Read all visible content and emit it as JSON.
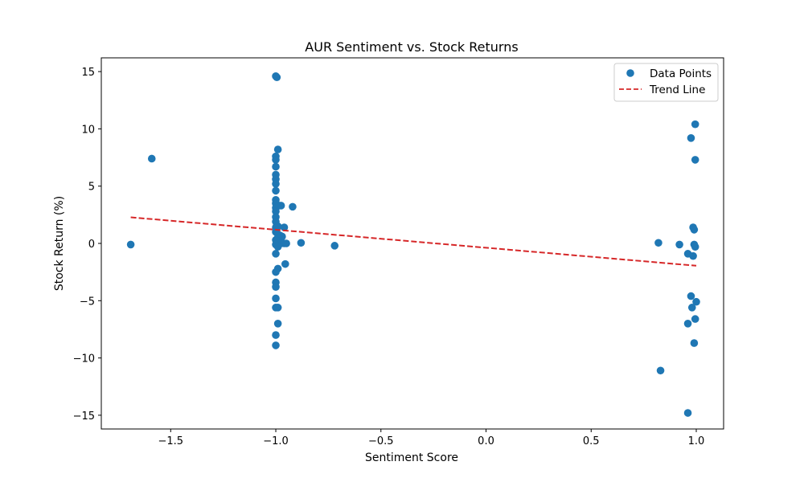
{
  "chart_data": {
    "type": "scatter",
    "title": "AUR Sentiment vs. Stock Returns",
    "xlabel": "Sentiment Score",
    "ylabel": "Stock Return (%)",
    "xlim": [
      -1.83,
      1.13
    ],
    "ylim": [
      -16.2,
      16.2
    ],
    "xticks": [
      -1.5,
      -1.0,
      -0.5,
      0.0,
      0.5,
      1.0
    ],
    "xtick_labels": [
      "−1.5",
      "−1.0",
      "−0.5",
      "0.0",
      "0.5",
      "1.0"
    ],
    "yticks": [
      -15,
      -10,
      -5,
      0,
      5,
      10,
      15
    ],
    "ytick_labels": [
      "−15",
      "−10",
      "−5",
      "0",
      "5",
      "10",
      "15"
    ],
    "grid": false,
    "legend_position": "top-right",
    "colors": {
      "points": "#1f77b4",
      "trend": "#d62728"
    },
    "series": [
      {
        "name": "Data Points",
        "kind": "scatter",
        "points": [
          [
            -1.69,
            -0.1
          ],
          [
            -1.59,
            7.4
          ],
          [
            -1.0,
            14.6
          ],
          [
            -0.995,
            14.5
          ],
          [
            -0.99,
            8.2
          ],
          [
            -1.0,
            7.6
          ],
          [
            -1.0,
            7.3
          ],
          [
            -1.0,
            6.7
          ],
          [
            -1.0,
            6.0
          ],
          [
            -1.0,
            5.6
          ],
          [
            -1.0,
            5.2
          ],
          [
            -1.0,
            4.6
          ],
          [
            -1.0,
            3.8
          ],
          [
            -1.0,
            3.5
          ],
          [
            -1.0,
            3.1
          ],
          [
            -1.0,
            2.8
          ],
          [
            -0.985,
            3.3
          ],
          [
            -0.975,
            3.3
          ],
          [
            -0.92,
            3.2
          ],
          [
            -1.0,
            2.3
          ],
          [
            -1.0,
            1.9
          ],
          [
            -1.0,
            1.4
          ],
          [
            -0.99,
            1.5
          ],
          [
            -0.96,
            1.4
          ],
          [
            -1.0,
            1.0
          ],
          [
            -0.99,
            0.8
          ],
          [
            -0.98,
            0.7
          ],
          [
            -0.97,
            0.6
          ],
          [
            -0.99,
            0.5
          ],
          [
            -1.0,
            0.3
          ],
          [
            -0.99,
            0.2
          ],
          [
            -0.98,
            0.1
          ],
          [
            -0.975,
            0.0
          ],
          [
            -0.96,
            0.0
          ],
          [
            -0.95,
            0.0
          ],
          [
            -1.0,
            -0.1
          ],
          [
            -0.99,
            -0.3
          ],
          [
            -0.88,
            0.05
          ],
          [
            -0.72,
            -0.2
          ],
          [
            -1.0,
            -0.9
          ],
          [
            -0.955,
            -1.8
          ],
          [
            -0.99,
            -2.2
          ],
          [
            -1.0,
            -2.5
          ],
          [
            -1.0,
            -3.4
          ],
          [
            -1.0,
            -3.8
          ],
          [
            -1.0,
            -4.8
          ],
          [
            -1.0,
            -5.6
          ],
          [
            -0.99,
            -5.6
          ],
          [
            -0.99,
            -7.0
          ],
          [
            -1.0,
            -8.0
          ],
          [
            -1.0,
            -8.9
          ],
          [
            0.82,
            0.05
          ],
          [
            0.92,
            -0.1
          ],
          [
            0.96,
            -0.9
          ],
          [
            0.985,
            -1.1
          ],
          [
            0.99,
            -0.1
          ],
          [
            0.995,
            -0.3
          ],
          [
            0.985,
            1.4
          ],
          [
            0.99,
            1.2
          ],
          [
            0.975,
            9.2
          ],
          [
            0.995,
            10.4
          ],
          [
            0.995,
            7.3
          ],
          [
            0.975,
            -4.6
          ],
          [
            1.0,
            -5.1
          ],
          [
            0.98,
            -5.6
          ],
          [
            0.995,
            -6.6
          ],
          [
            0.96,
            -7.0
          ],
          [
            0.99,
            -8.7
          ],
          [
            0.83,
            -11.1
          ],
          [
            0.96,
            -14.8
          ]
        ]
      },
      {
        "name": "Trend Line",
        "kind": "line",
        "style": "dashed",
        "points": [
          [
            -1.69,
            2.28
          ],
          [
            1.0,
            -1.95
          ]
        ]
      }
    ]
  }
}
